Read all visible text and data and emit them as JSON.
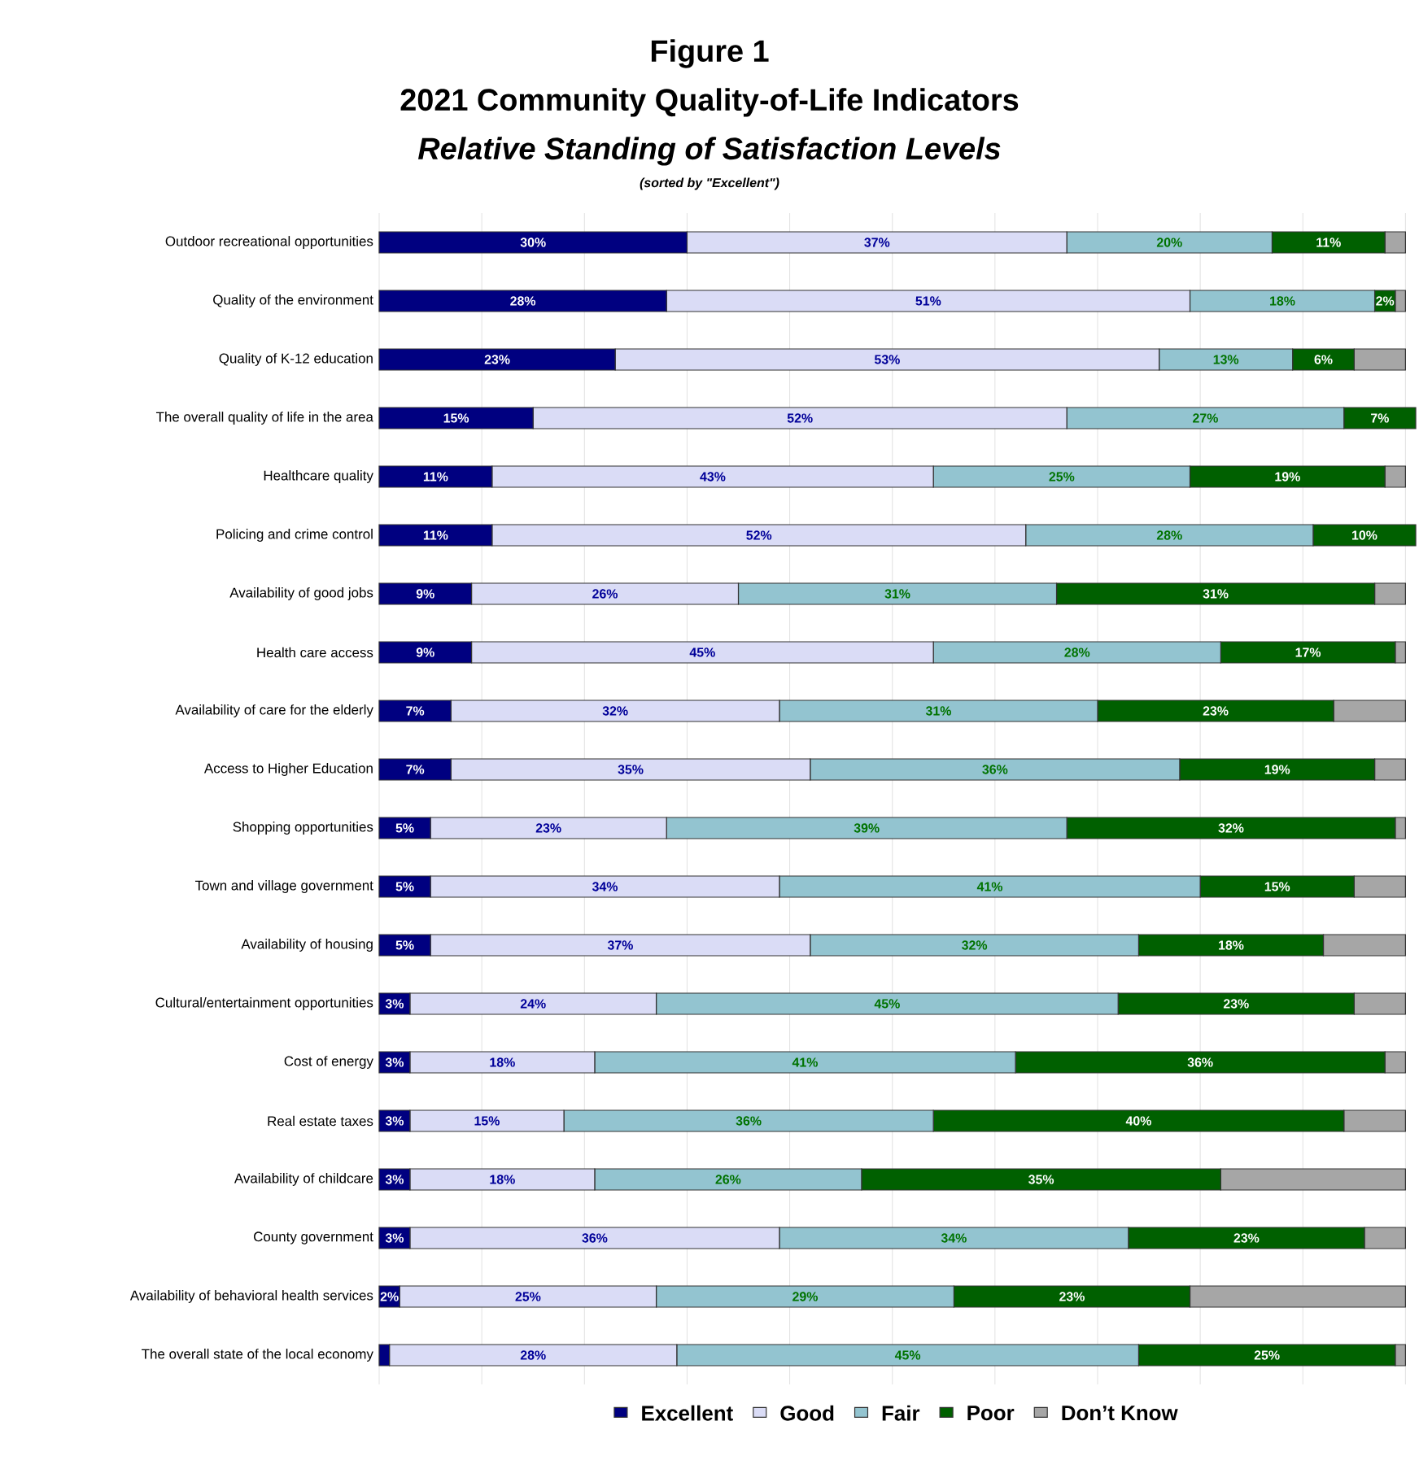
{
  "chart_data": {
    "type": "bar",
    "orientation": "horizontal",
    "stacked": true,
    "title": "Figure 1",
    "subtitle": "2021 Community Quality-of-Life Indicators",
    "annotations": [
      "Relative Standing of Satisfaction Levels",
      "(sorted by \"Excellent\")"
    ],
    "categories": [
      "Outdoor recreational opportunities",
      "Quality of the environment",
      "Quality of K-12 education",
      "The overall quality of life in the area",
      "Healthcare quality",
      "Policing and crime control",
      "Availability of good jobs",
      "Health care access",
      "Availability of care for the elderly",
      "Access to Higher Education",
      "Shopping opportunities",
      "Town and village government",
      "Availability of housing",
      "Cultural/entertainment opportunities",
      "Cost of energy",
      "Real estate taxes",
      "Availability of childcare",
      "County government",
      "Availability of behavioral health services",
      "The overall state of the local economy"
    ],
    "series": [
      {
        "name": "Excellent",
        "color": "#000080",
        "values": [
          30,
          28,
          23,
          15,
          11,
          11,
          9,
          9,
          7,
          7,
          5,
          5,
          5,
          3,
          3,
          3,
          3,
          3,
          2,
          1
        ],
        "value_labels": [
          "30%",
          "28%",
          "23%",
          "15%",
          "11%",
          "11%",
          "9%",
          "9%",
          "7%",
          "7%",
          "5%",
          "5%",
          "5%",
          "3%",
          "3%",
          "3%",
          "3%",
          "3%",
          "2%",
          null
        ]
      },
      {
        "name": "Good",
        "color": "#dadcf6",
        "values": [
          37,
          51,
          53,
          52,
          43,
          52,
          26,
          45,
          32,
          35,
          23,
          34,
          37,
          24,
          18,
          15,
          18,
          36,
          25,
          28
        ],
        "value_labels": [
          "37%",
          "51%",
          "53%",
          "52%",
          "43%",
          "52%",
          "26%",
          "45%",
          "32%",
          "35%",
          "23%",
          "34%",
          "37%",
          "24%",
          "18%",
          "15%",
          "18%",
          "36%",
          "25%",
          "28%"
        ]
      },
      {
        "name": "Fair",
        "color": "#93c4d0",
        "values": [
          20,
          18,
          13,
          27,
          25,
          28,
          31,
          28,
          31,
          36,
          39,
          41,
          32,
          45,
          41,
          36,
          26,
          34,
          29,
          45
        ],
        "value_labels": [
          "20%",
          "18%",
          "13%",
          "27%",
          "25%",
          "28%",
          "31%",
          "28%",
          "31%",
          "36%",
          "39%",
          "41%",
          "32%",
          "45%",
          "41%",
          "36%",
          "26%",
          "34%",
          "29%",
          "45%"
        ]
      },
      {
        "name": "Poor",
        "color": "#006000",
        "values": [
          11,
          2,
          6,
          7,
          19,
          10,
          31,
          17,
          23,
          19,
          32,
          15,
          18,
          23,
          36,
          40,
          35,
          23,
          23,
          25
        ],
        "value_labels": [
          "11%",
          "2%",
          "6%",
          "7%",
          "19%",
          "10%",
          "31%",
          "17%",
          "23%",
          "19%",
          "32%",
          "15%",
          "18%",
          "23%",
          "36%",
          "40%",
          "35%",
          "23%",
          "23%",
          "25%"
        ]
      },
      {
        "name": "Don’t Know",
        "color": "#a6a6a6",
        "values": [
          2,
          1,
          5,
          0,
          2,
          0,
          3,
          1,
          7,
          3,
          1,
          5,
          8,
          5,
          2,
          6,
          18,
          4,
          21,
          1
        ]
      }
    ],
    "xlim": [
      0,
      101
    ],
    "xticks": [
      {
        "value": 0,
        "label": null
      },
      {
        "value": 10,
        "label": null
      },
      {
        "value": 20,
        "label": null
      },
      {
        "value": 30,
        "label": null
      },
      {
        "value": 40,
        "label": null
      },
      {
        "value": 50,
        "label": null
      },
      {
        "value": 60,
        "label": null
      },
      {
        "value": 70,
        "label": null
      },
      {
        "value": 80,
        "label": null
      },
      {
        "value": 90,
        "label": null
      },
      {
        "value": 100,
        "label": null
      }
    ],
    "tick_labels": "y",
    "grid": "x",
    "legend": "bottom"
  }
}
